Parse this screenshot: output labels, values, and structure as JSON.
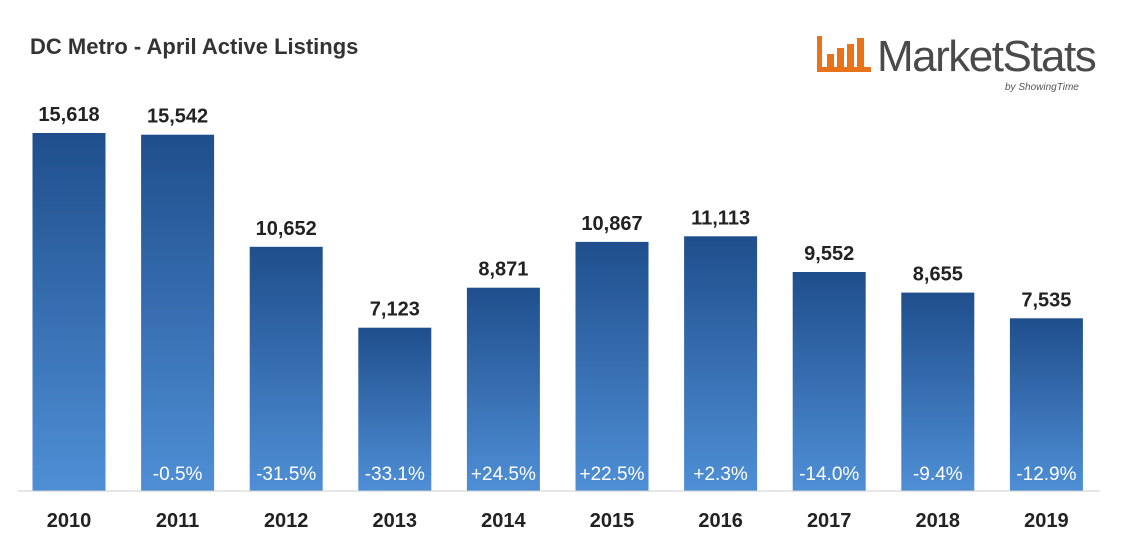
{
  "title": "DC Metro - April Active Listings",
  "logo": {
    "text": "MarketStats",
    "subtext": "by ShowingTime",
    "accent_color": "#e8731a"
  },
  "chart_data": {
    "type": "bar",
    "title": "DC Metro - April Active Listings",
    "xlabel": "",
    "ylabel": "",
    "categories": [
      "2010",
      "2011",
      "2012",
      "2013",
      "2014",
      "2015",
      "2016",
      "2017",
      "2018",
      "2019"
    ],
    "values": [
      15618,
      15542,
      10652,
      7123,
      8871,
      10867,
      11113,
      9552,
      8655,
      7535
    ],
    "value_labels": [
      "15,618",
      "15,542",
      "10,652",
      "7,123",
      "8,871",
      "10,867",
      "11,113",
      "9,552",
      "8,655",
      "7,535"
    ],
    "change_labels": [
      "",
      "-0.5%",
      "-31.5%",
      "-33.1%",
      "+24.5%",
      "+22.5%",
      "+2.3%",
      "-14.0%",
      "-9.4%",
      "-12.9%"
    ],
    "ylim": [
      0,
      15618
    ],
    "grid": false,
    "bar_color_top": "#1f4e8c",
    "bar_color_bottom": "#4f8fd6"
  }
}
